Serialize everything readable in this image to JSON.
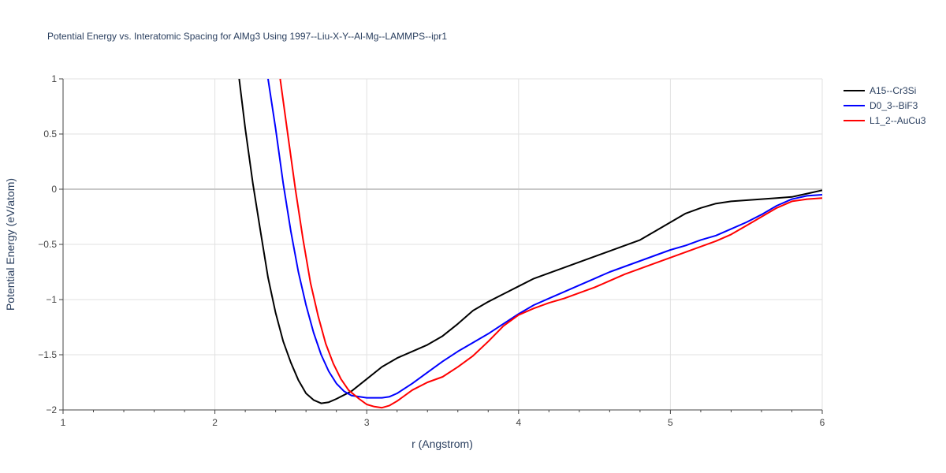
{
  "chart_data": {
    "type": "line",
    "title": "Potential Energy vs. Interatomic Spacing for AlMg3 Using 1997--Liu-X-Y--Al-Mg--LAMMPS--ipr1",
    "xlabel": "r (Angstrom)",
    "ylabel": "Potential Energy (eV/atom)",
    "xlim": [
      1,
      6
    ],
    "ylim": [
      -2,
      1
    ],
    "xticks": [
      1,
      2,
      3,
      4,
      5,
      6
    ],
    "xtick_labels": [
      "1",
      "2",
      "3",
      "4",
      "5",
      "6"
    ],
    "yticks": [
      1,
      0.5,
      0,
      -0.5,
      -1,
      -1.5,
      -2
    ],
    "ytick_labels": [
      "1",
      "0.5",
      "0",
      "−0.5",
      "−1",
      "−1.5",
      "−2"
    ],
    "grid": true,
    "legend_position": "top-right",
    "series": [
      {
        "name": "A15--Cr3Si",
        "color": "#000000",
        "x": [
          2.16,
          2.2,
          2.25,
          2.3,
          2.35,
          2.4,
          2.45,
          2.5,
          2.55,
          2.6,
          2.65,
          2.7,
          2.75,
          2.8,
          2.9,
          3.0,
          3.1,
          3.2,
          3.3,
          3.4,
          3.5,
          3.6,
          3.7,
          3.8,
          3.9,
          4.0,
          4.1,
          4.2,
          4.3,
          4.4,
          4.5,
          4.6,
          4.7,
          4.8,
          4.9,
          5.0,
          5.1,
          5.2,
          5.3,
          5.4,
          5.5,
          5.6,
          5.7,
          5.8,
          5.9,
          6.0
        ],
        "y": [
          1.0,
          0.55,
          0.05,
          -0.38,
          -0.8,
          -1.12,
          -1.38,
          -1.57,
          -1.73,
          -1.85,
          -1.91,
          -1.94,
          -1.93,
          -1.9,
          -1.83,
          -1.72,
          -1.61,
          -1.53,
          -1.47,
          -1.41,
          -1.33,
          -1.22,
          -1.1,
          -1.02,
          -0.95,
          -0.88,
          -0.81,
          -0.76,
          -0.71,
          -0.66,
          -0.61,
          -0.56,
          -0.51,
          -0.46,
          -0.38,
          -0.3,
          -0.22,
          -0.17,
          -0.13,
          -0.11,
          -0.1,
          -0.09,
          -0.08,
          -0.07,
          -0.04,
          -0.01
        ]
      },
      {
        "name": "D0_3--BiF3",
        "color": "#0000ff",
        "x": [
          2.35,
          2.4,
          2.45,
          2.5,
          2.55,
          2.6,
          2.65,
          2.7,
          2.75,
          2.8,
          2.85,
          2.9,
          3.0,
          3.1,
          3.15,
          3.2,
          3.3,
          3.4,
          3.5,
          3.6,
          3.7,
          3.8,
          3.9,
          4.0,
          4.1,
          4.2,
          4.3,
          4.4,
          4.5,
          4.6,
          4.7,
          4.8,
          4.9,
          5.0,
          5.1,
          5.2,
          5.3,
          5.4,
          5.5,
          5.6,
          5.7,
          5.8,
          5.9,
          6.0
        ],
        "y": [
          1.0,
          0.55,
          0.05,
          -0.38,
          -0.75,
          -1.05,
          -1.3,
          -1.5,
          -1.65,
          -1.76,
          -1.83,
          -1.87,
          -1.89,
          -1.89,
          -1.88,
          -1.85,
          -1.76,
          -1.66,
          -1.56,
          -1.47,
          -1.39,
          -1.31,
          -1.22,
          -1.13,
          -1.05,
          -0.99,
          -0.93,
          -0.87,
          -0.81,
          -0.75,
          -0.7,
          -0.65,
          -0.6,
          -0.55,
          -0.51,
          -0.46,
          -0.42,
          -0.36,
          -0.3,
          -0.23,
          -0.15,
          -0.09,
          -0.06,
          -0.05
        ]
      },
      {
        "name": "L1_2--AuCu3",
        "color": "#ff0000",
        "x": [
          2.43,
          2.48,
          2.53,
          2.58,
          2.63,
          2.68,
          2.73,
          2.78,
          2.83,
          2.88,
          2.95,
          3.0,
          3.05,
          3.1,
          3.15,
          3.2,
          3.3,
          3.4,
          3.5,
          3.6,
          3.7,
          3.8,
          3.9,
          4.0,
          4.1,
          4.2,
          4.3,
          4.4,
          4.5,
          4.6,
          4.7,
          4.8,
          4.9,
          5.0,
          5.1,
          5.2,
          5.3,
          5.4,
          5.5,
          5.6,
          5.7,
          5.8,
          5.9,
          6.0
        ],
        "y": [
          1.0,
          0.5,
          0.0,
          -0.45,
          -0.85,
          -1.15,
          -1.4,
          -1.58,
          -1.72,
          -1.82,
          -1.9,
          -1.95,
          -1.97,
          -1.98,
          -1.96,
          -1.92,
          -1.82,
          -1.75,
          -1.7,
          -1.61,
          -1.51,
          -1.38,
          -1.24,
          -1.14,
          -1.08,
          -1.03,
          -0.99,
          -0.94,
          -0.89,
          -0.83,
          -0.77,
          -0.72,
          -0.67,
          -0.62,
          -0.57,
          -0.52,
          -0.47,
          -0.41,
          -0.33,
          -0.25,
          -0.17,
          -0.11,
          -0.09,
          -0.08
        ]
      }
    ]
  }
}
